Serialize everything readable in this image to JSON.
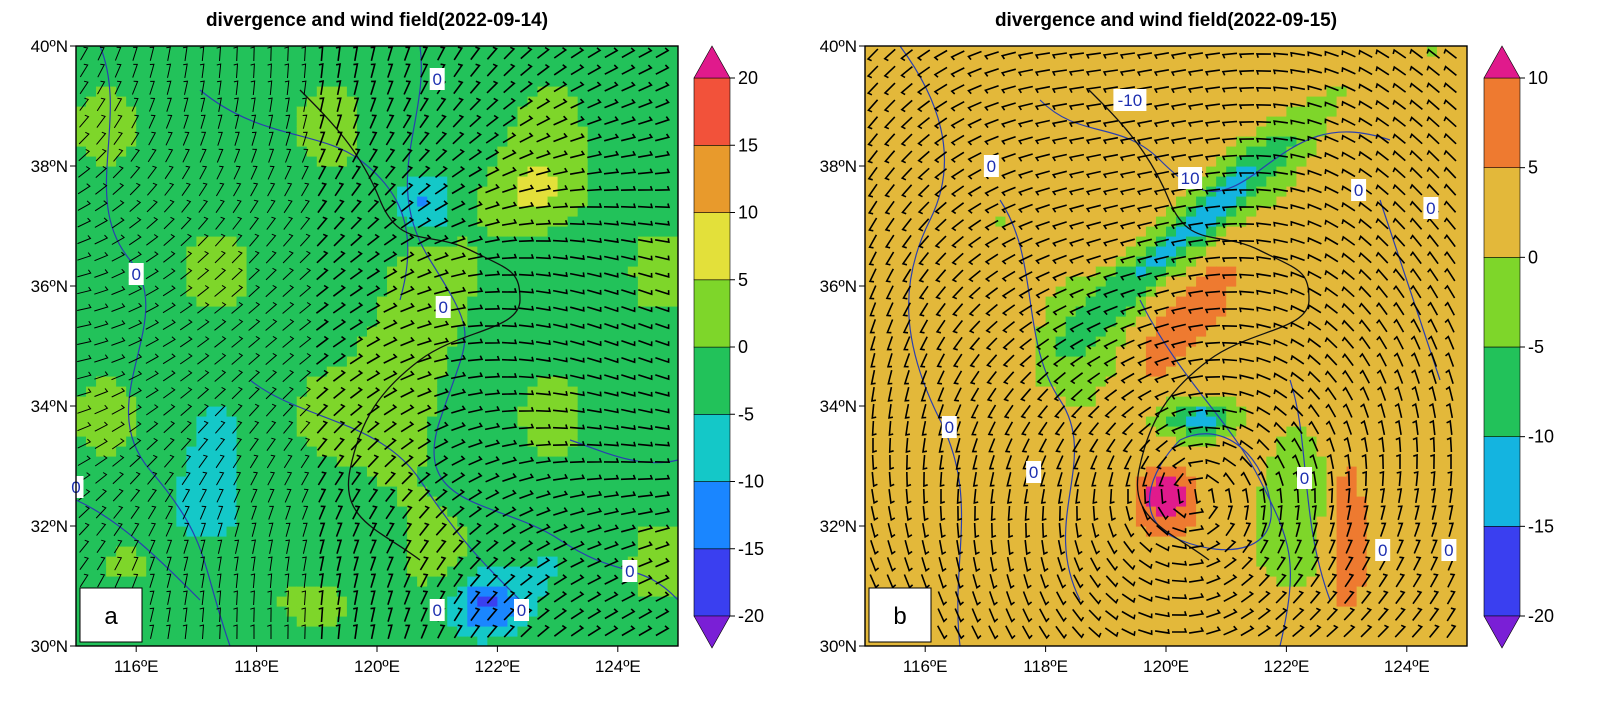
{
  "charts": [
    {
      "title": "divergence and wind field(2022-09-14)",
      "panel_label": "a",
      "chart_data": {
        "type": "heatmap",
        "title": "divergence and wind field(2022-09-14)",
        "xlabel": "",
        "ylabel": "",
        "xlim": [
          115,
          125
        ],
        "ylim": [
          30,
          40
        ],
        "x_ticks": [
          "116ºE",
          "118ºE",
          "120ºE",
          "122ºE",
          "124ºE"
        ],
        "x_tick_values": [
          116,
          118,
          120,
          122,
          124
        ],
        "y_ticks": [
          "30ºN",
          "32ºN",
          "34ºN",
          "36ºN",
          "38ºN",
          "40ºN"
        ],
        "y_tick_values": [
          30,
          32,
          34,
          36,
          38,
          40
        ],
        "colorbar": {
          "levels": [
            -20,
            -15,
            -10,
            -5,
            0,
            5,
            10,
            15,
            20
          ],
          "labels": [
            "-20",
            "-15",
            "-10",
            "-5",
            "0",
            "5",
            "10",
            "15",
            "20"
          ],
          "colors": [
            "#7a1fd6",
            "#3a3ff0",
            "#1a86ff",
            "#14c8c8",
            "#22c25a",
            "#7ed62a",
            "#e3e03a",
            "#e89a2c",
            "#f2523a",
            "#e01a8c"
          ],
          "extend": "both"
        },
        "contour_labels": [
          {
            "text": "0",
            "lon": 121.0,
            "lat": 39.45
          },
          {
            "text": "0",
            "lon": 116.0,
            "lat": 36.2
          },
          {
            "text": "0",
            "lon": 121.1,
            "lat": 35.65
          },
          {
            "text": "0",
            "lon": 115.0,
            "lat": 32.65
          },
          {
            "text": "0",
            "lon": 121.0,
            "lat": 30.6
          },
          {
            "text": "0",
            "lon": 122.4,
            "lat": 30.6
          },
          {
            "text": "0",
            "lon": 124.2,
            "lat": 31.25
          }
        ]
      }
    },
    {
      "title": "divergence and wind field(2022-09-15)",
      "panel_label": "b",
      "chart_data": {
        "type": "heatmap",
        "title": "divergence and wind field(2022-09-15)",
        "xlabel": "",
        "ylabel": "",
        "xlim": [
          115,
          125
        ],
        "ylim": [
          30,
          40
        ],
        "x_ticks": [
          "116ºE",
          "118ºE",
          "120ºE",
          "122ºE",
          "124ºE"
        ],
        "x_tick_values": [
          116,
          118,
          120,
          122,
          124
        ],
        "y_ticks": [
          "30ºN",
          "32ºN",
          "34ºN",
          "36ºN",
          "38ºN",
          "40ºN"
        ],
        "y_tick_values": [
          30,
          32,
          34,
          36,
          38,
          40
        ],
        "colorbar": {
          "levels": [
            -20,
            -15,
            -10,
            -5,
            0,
            5,
            10
          ],
          "labels": [
            "-20",
            "-15",
            "-10",
            "-5",
            "0",
            "5",
            "10"
          ],
          "colors": [
            "#7a1fd6",
            "#3a3ff0",
            "#14b4e0",
            "#22c25a",
            "#7ed62a",
            "#e3b83a",
            "#ee7a30",
            "#e01a8c"
          ],
          "extend": "both"
        },
        "contour_labels": [
          {
            "text": "-10",
            "lon": 119.4,
            "lat": 39.1
          },
          {
            "text": "0",
            "lon": 117.1,
            "lat": 38.0
          },
          {
            "text": "10",
            "lon": 120.4,
            "lat": 37.8
          },
          {
            "text": "0",
            "lon": 123.2,
            "lat": 37.6
          },
          {
            "text": "0",
            "lon": 124.4,
            "lat": 37.3
          },
          {
            "text": "0",
            "lon": 116.4,
            "lat": 33.65
          },
          {
            "text": "0",
            "lon": 117.8,
            "lat": 32.9
          },
          {
            "text": "0",
            "lon": 122.3,
            "lat": 32.8
          },
          {
            "text": "0",
            "lon": 123.6,
            "lat": 31.6
          },
          {
            "text": "0",
            "lon": 124.7,
            "lat": 31.6
          }
        ]
      }
    }
  ]
}
